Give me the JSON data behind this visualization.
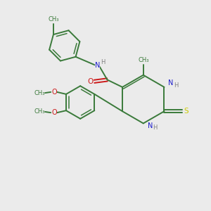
{
  "background_color": "#ebebeb",
  "bond_color": "#3a7a3a",
  "N_color": "#1a1acc",
  "O_color": "#cc1a1a",
  "S_color": "#cccc00",
  "H_color": "#808080",
  "figsize": [
    3.0,
    3.0
  ],
  "dpi": 100,
  "xlim": [
    0,
    10
  ],
  "ylim": [
    0,
    10
  ]
}
